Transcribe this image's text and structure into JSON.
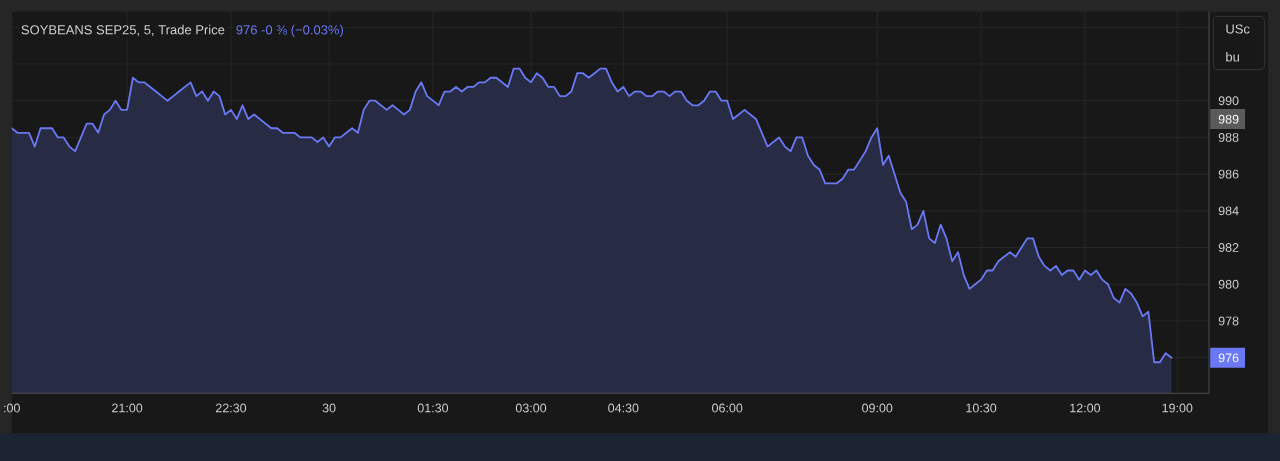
{
  "chart_data": {
    "type": "area",
    "title": "SOYBEANS SEP25, 5, Trade Price",
    "subtitle": "976 -0 ⅜ (−0.03%)",
    "ylabel": "USc bu",
    "color": "#6a78f4",
    "categories": [
      ":00",
      null,
      null,
      null,
      null,
      null,
      null,
      null,
      null,
      null,
      null,
      null,
      null,
      null,
      null,
      null,
      null,
      null,
      null,
      null,
      "21:00",
      null,
      null,
      null,
      null,
      null,
      null,
      null,
      null,
      null,
      null,
      null,
      null,
      null,
      null,
      null,
      null,
      null,
      "22:30",
      null,
      null,
      null,
      null,
      null,
      null,
      null,
      null,
      null,
      null,
      null,
      null,
      null,
      null,
      null,
      null,
      "30",
      null,
      null,
      null,
      null,
      null,
      null,
      null,
      null,
      null,
      null,
      null,
      null,
      null,
      null,
      null,
      null,
      null,
      "01:30",
      null,
      null,
      null,
      null,
      null,
      null,
      null,
      null,
      null,
      null,
      null,
      null,
      null,
      null,
      null,
      null,
      "03:00",
      null,
      null,
      null,
      null,
      null,
      null,
      null,
      null,
      null,
      null,
      null,
      null,
      null,
      null,
      null,
      "04:30",
      null,
      null,
      null,
      null,
      null,
      null,
      null,
      null,
      null,
      null,
      null,
      null,
      null,
      null,
      null,
      null,
      null,
      "06:00",
      null,
      null,
      null,
      null,
      null,
      null,
      null,
      null,
      null,
      null,
      null,
      null,
      null,
      null,
      null,
      null,
      null,
      null,
      null,
      null,
      null,
      null,
      null,
      null,
      null,
      "09:00",
      null,
      null,
      null,
      null,
      null,
      null,
      null,
      null,
      null,
      null,
      null,
      null,
      null,
      null,
      null,
      null,
      null,
      "10:30",
      null,
      null,
      null,
      null,
      null,
      null,
      null,
      null,
      null,
      null,
      null,
      null,
      null,
      null,
      null,
      null,
      null,
      "12:00",
      null,
      null,
      null,
      null,
      null,
      null,
      null,
      null,
      null,
      null,
      null,
      null,
      null,
      null,
      null,
      "19:00",
      null,
      null,
      null,
      null,
      null
    ],
    "values": [
      988.5,
      988.25,
      988.25,
      988.25,
      987.5,
      988.5,
      988.5,
      988.5,
      988,
      988,
      987.5,
      987.25,
      988,
      988.75,
      988.75,
      988.25,
      989.25,
      989.5,
      990,
      989.5,
      989.5,
      991.25,
      991,
      991,
      990.75,
      990.5,
      990.25,
      990,
      990.25,
      990.5,
      990.75,
      991,
      990.25,
      990.5,
      990,
      990.5,
      990.25,
      989.25,
      989.5,
      989,
      989.75,
      989,
      989.25,
      989,
      988.75,
      988.5,
      988.5,
      988.25,
      988.25,
      988.25,
      988,
      988,
      988,
      987.75,
      988,
      987.5,
      988,
      988,
      988.25,
      988.5,
      988.25,
      989.5,
      990,
      990,
      989.75,
      989.5,
      989.75,
      989.5,
      989.25,
      989.5,
      990.5,
      991,
      990.25,
      990,
      989.75,
      990.5,
      990.5,
      990.75,
      990.5,
      990.75,
      990.75,
      991,
      991,
      991.25,
      991.25,
      991,
      990.75,
      991.75,
      991.75,
      991.25,
      991,
      991.5,
      991.25,
      990.75,
      990.75,
      990.25,
      990.25,
      990.5,
      991.5,
      991.5,
      991.25,
      991.5,
      991.75,
      991.75,
      991,
      990.5,
      990.75,
      990.25,
      990.5,
      990.5,
      990.25,
      990.25,
      990.5,
      990.5,
      990.25,
      990.5,
      990.5,
      990,
      989.75,
      989.75,
      990,
      990.5,
      990.5,
      990,
      990,
      989,
      989.25,
      989.5,
      989.25,
      989,
      988.25,
      987.5,
      987.75,
      988,
      987.5,
      987.25,
      988,
      988,
      987,
      986.5,
      986.25,
      985.5,
      985.5,
      985.5,
      985.75,
      986.25,
      986.25,
      986.75,
      987.25,
      988,
      988.5,
      986.5,
      987,
      986,
      985,
      984.5,
      983,
      983.25,
      984,
      982.5,
      982.25,
      983.25,
      982.5,
      981.25,
      981.75,
      980.5,
      979.75,
      980,
      980.25,
      980.75,
      980.75,
      981.25,
      981.5,
      981.75,
      981.5,
      982,
      982.5,
      982.5,
      981.5,
      981,
      980.75,
      981,
      980.5,
      980.75,
      980.75,
      980.25,
      980.75,
      980.5,
      980.75,
      980.25,
      980,
      979.25,
      979,
      979.75,
      979.5,
      979,
      978.25,
      978.5,
      975.75,
      975.75,
      976.25,
      976,
      null,
      null,
      null,
      null,
      null,
      null
    ],
    "ylim": [
      974.06,
      994.85
    ],
    "yticks": [
      976,
      978,
      980,
      982,
      984,
      986,
      988,
      990,
      {
        "value": 992,
        "label": null
      },
      {
        "value": 994,
        "label": null
      }
    ],
    "grid": true,
    "annotations": [
      "989"
    ]
  }
}
